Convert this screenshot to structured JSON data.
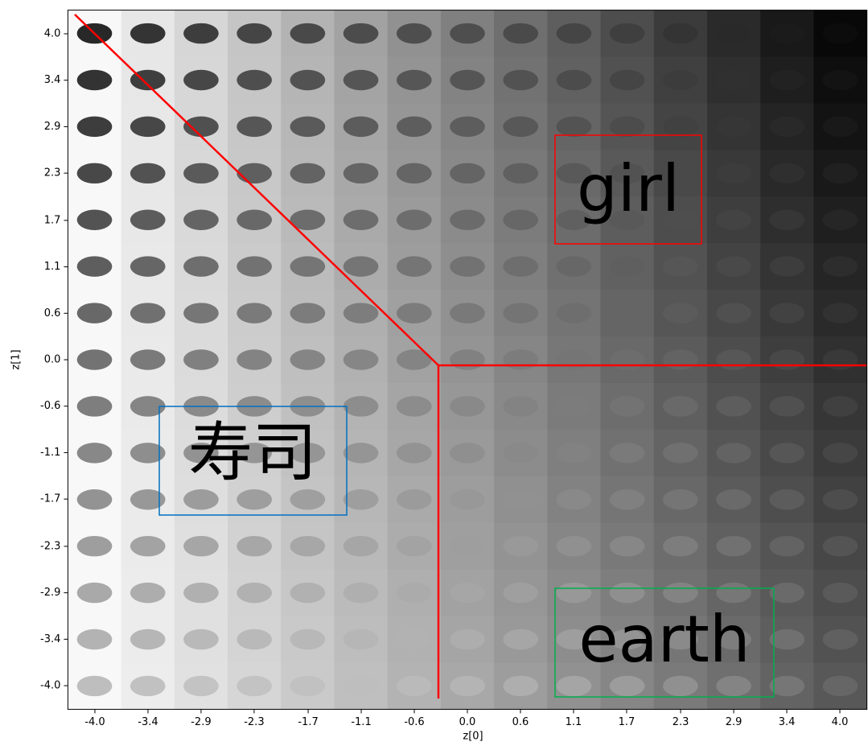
{
  "chart_data": {
    "type": "image-grid",
    "xlabel": "z[0]",
    "ylabel": "z[1]",
    "xlim": [
      -4.29,
      4.29
    ],
    "ylim": [
      -4.29,
      4.29
    ],
    "xticks": [
      {
        "value": -4,
        "label": "-4.0"
      },
      {
        "value": -3.43,
        "label": "-3.4"
      },
      {
        "value": -2.86,
        "label": "-2.9"
      },
      {
        "value": -2.29,
        "label": "-2.3"
      },
      {
        "value": -1.71,
        "label": "-1.7"
      },
      {
        "value": -1.14,
        "label": "-1.1"
      },
      {
        "value": -0.57,
        "label": "-0.6"
      },
      {
        "value": 0,
        "label": "0.0"
      },
      {
        "value": 0.57,
        "label": "0.6"
      },
      {
        "value": 1.14,
        "label": "1.1"
      },
      {
        "value": 1.71,
        "label": "1.7"
      },
      {
        "value": 2.29,
        "label": "2.3"
      },
      {
        "value": 2.86,
        "label": "2.9"
      },
      {
        "value": 3.43,
        "label": "3.4"
      },
      {
        "value": 4,
        "label": "4.0"
      }
    ],
    "yticks": [
      {
        "value": -4,
        "label": "-4.0"
      },
      {
        "value": -3.43,
        "label": "-3.4"
      },
      {
        "value": -2.86,
        "label": "-2.9"
      },
      {
        "value": -2.29,
        "label": "-2.3"
      },
      {
        "value": -1.71,
        "label": "-1.7"
      },
      {
        "value": -1.14,
        "label": "-1.1"
      },
      {
        "value": -0.57,
        "label": "-0.6"
      },
      {
        "value": 0,
        "label": "0.0"
      },
      {
        "value": 0.57,
        "label": "0.6"
      },
      {
        "value": 1.14,
        "label": "1.1"
      },
      {
        "value": 1.71,
        "label": "1.7"
      },
      {
        "value": 2.29,
        "label": "2.3"
      },
      {
        "value": 2.86,
        "label": "2.9"
      },
      {
        "value": 3.43,
        "label": "3.4"
      },
      {
        "value": 4,
        "label": "4.0"
      }
    ],
    "annotations": [
      {
        "text": "girl",
        "color": "#ff0000"
      },
      {
        "text": "寿司",
        "color": "#0070c0"
      },
      {
        "text": "earth",
        "color": "#00b050"
      }
    ]
  }
}
